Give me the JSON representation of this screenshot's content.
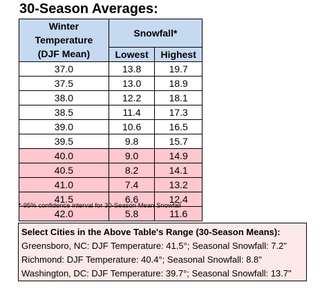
{
  "title": "30-Season Averages:",
  "table": {
    "header_temp_1": "Winter Temperature",
    "header_temp_2": "(DJF Mean)",
    "header_snow": "Snowfall*",
    "header_lowest": "Lowest",
    "header_highest": "Highest",
    "rows": [
      {
        "temp": "37.0",
        "lowest": "13.8",
        "highest": "19.7"
      },
      {
        "temp": "37.5",
        "lowest": "13.0",
        "highest": "18.9"
      },
      {
        "temp": "38.0",
        "lowest": "12.2",
        "highest": "18.1"
      },
      {
        "temp": "38.5",
        "lowest": "11.4",
        "highest": "17.3"
      },
      {
        "temp": "39.0",
        "lowest": "10.6",
        "highest": "16.5"
      },
      {
        "temp": "39.5",
        "lowest": "9.8",
        "highest": "15.7"
      },
      {
        "temp": "40.0",
        "lowest": "9.0",
        "highest": "14.9"
      },
      {
        "temp": "40.5",
        "lowest": "8.2",
        "highest": "14.1"
      },
      {
        "temp": "41.0",
        "lowest": "7.4",
        "highest": "13.2"
      },
      {
        "temp": "41.5",
        "lowest": "6.6",
        "highest": "12.4"
      },
      {
        "temp": "42.0",
        "lowest": "5.8",
        "highest": "11.6"
      }
    ]
  },
  "footnote": "*-95% confidence interval for 30-Season Mean Snowfall",
  "cities": {
    "heading": "Select Cities in the Above Table's Range (30-Season Means):",
    "lines": [
      "Greensboro, NC: DJF Temperature: 41.5°; Seasonal Snowfall: 7.2\"",
      "Richmond: DJF Temperature: 40.4°; Seasonal Snowfall: 8.8\"",
      "Washington, DC: DJF Temperature: 39.7°; Seasonal Snowfall: 13.7\""
    ]
  },
  "colors": {
    "header_fill": "#c5d9f1",
    "highlight_fill": "#ffc7ce",
    "city_box_fill": "#fde9e9"
  }
}
